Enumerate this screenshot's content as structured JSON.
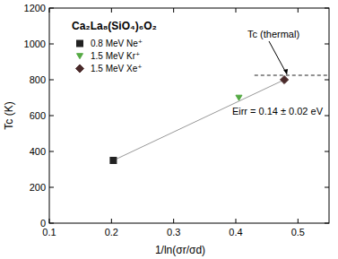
{
  "chart_data": {
    "type": "scatter",
    "title": "Ca₂La₈(SiO₄)₆O₂",
    "x_label": "1/ln(σr/σd)",
    "y_label": "Tc (K)",
    "xlim": [
      0.1,
      0.55
    ],
    "xticks": [
      0.1,
      0.2,
      0.3,
      0.4,
      0.5
    ],
    "ylim": [
      0,
      1200
    ],
    "yticks": [
      0,
      200,
      400,
      600,
      800,
      1000,
      1200
    ],
    "legend": "upper left",
    "series": [
      {
        "name": "0.8 MeV Ne⁺",
        "color": "#222222",
        "marker": "square",
        "x": [
          0.203
        ],
        "values": [
          350
        ]
      },
      {
        "name": "1.5 MeV Kr⁺",
        "color": "#55aa44",
        "marker": "triangle-down",
        "x": [
          0.405
        ],
        "values": [
          700
        ]
      },
      {
        "name": "1.5 MeV Xe⁺",
        "color": "#4a2a2a",
        "marker": "diamond",
        "x": [
          0.478
        ],
        "values": [
          800
        ]
      }
    ],
    "fit": {
      "x": [
        0.203,
        0.478
      ],
      "values": [
        350,
        800
      ],
      "color": "#999999",
      "line_style": "solid"
    },
    "thermal_line": {
      "x": [
        0.43,
        0.55
      ],
      "value": 825,
      "color": "#222222",
      "line_style": "dashed"
    },
    "annotations": [
      {
        "text": "Tc (thermal)"
      },
      {
        "text": "Eirr = 0.14 ± 0.02 eV"
      }
    ]
  }
}
